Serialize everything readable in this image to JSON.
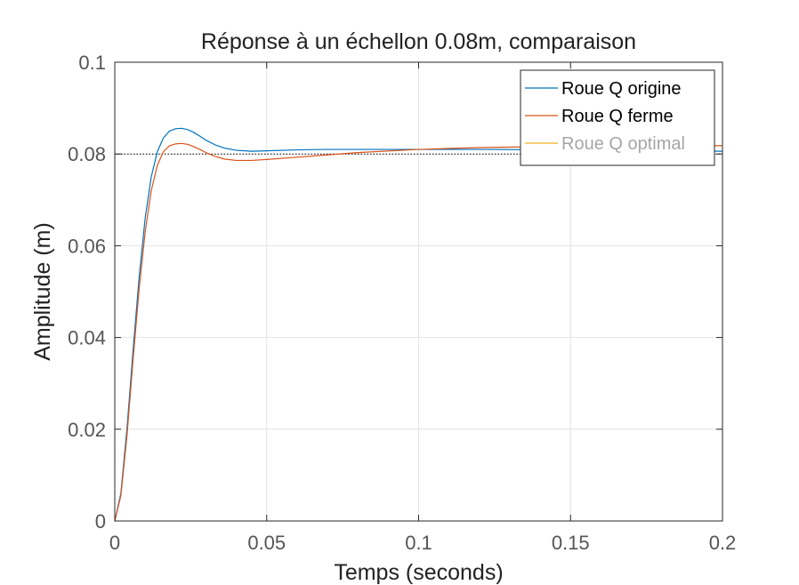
{
  "chart_data": {
    "type": "line",
    "title": "Réponse à un échellon 0.08m, comparaison",
    "xlabel": "Temps (seconds)",
    "ylabel": "Amplitude (m)",
    "xlim": [
      0,
      0.2
    ],
    "ylim": [
      0,
      0.1
    ],
    "x_ticks": [
      0,
      0.05,
      0.1,
      0.15,
      0.2
    ],
    "x_tick_labels": [
      "0",
      "0.05",
      "0.1",
      "0.15",
      "0.2"
    ],
    "y_ticks": [
      0,
      0.02,
      0.04,
      0.06,
      0.08,
      0.1
    ],
    "y_tick_labels": [
      "0",
      "0.02",
      "0.04",
      "0.06",
      "0.08",
      "0.1"
    ],
    "grid": true,
    "legend_position": "top-right",
    "reference_line": {
      "y": 0.08,
      "style": "dotted",
      "color": "#000000"
    },
    "series": [
      {
        "name": "Roue Q origine",
        "color": "#0072BD",
        "x": [
          0,
          0.002,
          0.004,
          0.006,
          0.008,
          0.01,
          0.012,
          0.014,
          0.016,
          0.018,
          0.02,
          0.022,
          0.024,
          0.026,
          0.028,
          0.03,
          0.033,
          0.036,
          0.04,
          0.045,
          0.05,
          0.06,
          0.07,
          0.08,
          0.1,
          0.12,
          0.15,
          0.18,
          0.2
        ],
        "y": [
          0,
          0.006,
          0.02,
          0.037,
          0.053,
          0.066,
          0.075,
          0.0805,
          0.0835,
          0.085,
          0.0855,
          0.0856,
          0.0853,
          0.0847,
          0.0839,
          0.083,
          0.082,
          0.0813,
          0.0808,
          0.0806,
          0.0807,
          0.0809,
          0.081,
          0.081,
          0.081,
          0.081,
          0.0809,
          0.0807,
          0.0806
        ]
      },
      {
        "name": "Roue Q ferme",
        "color": "#D95319",
        "x": [
          0,
          0.002,
          0.004,
          0.006,
          0.008,
          0.01,
          0.012,
          0.014,
          0.016,
          0.018,
          0.02,
          0.022,
          0.024,
          0.026,
          0.028,
          0.03,
          0.033,
          0.036,
          0.04,
          0.045,
          0.05,
          0.06,
          0.07,
          0.08,
          0.1,
          0.12,
          0.15,
          0.18,
          0.2
        ],
        "y": [
          0,
          0.0055,
          0.0185,
          0.035,
          0.0505,
          0.063,
          0.072,
          0.0775,
          0.0805,
          0.0818,
          0.0822,
          0.0823,
          0.0821,
          0.0816,
          0.081,
          0.0803,
          0.0795,
          0.0789,
          0.0786,
          0.0786,
          0.0788,
          0.0793,
          0.0798,
          0.0803,
          0.081,
          0.0814,
          0.0817,
          0.0818,
          0.0818
        ]
      },
      {
        "name": "Roue Q optimal",
        "color": "#EDB120",
        "x": [],
        "y": []
      }
    ]
  }
}
